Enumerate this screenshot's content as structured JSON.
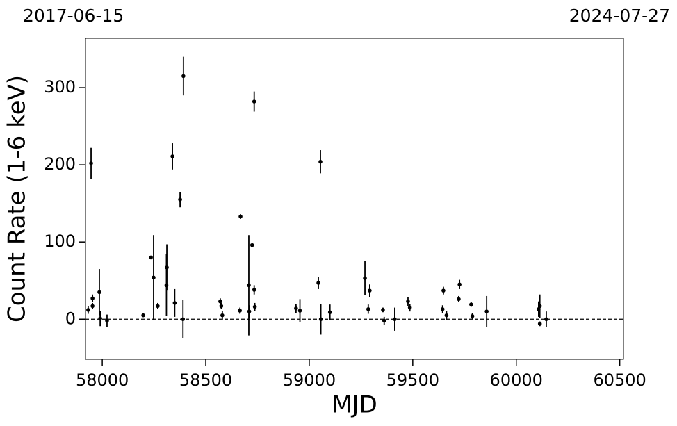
{
  "chart_data": {
    "type": "errorbar-scatter",
    "annotations": [
      "2017-06-15",
      "2024-07-27"
    ],
    "x_label": "MJD",
    "y_label": "Count Rate (1-6 keV)",
    "xlim": [
      57919,
      60518
    ],
    "ylim": [
      -52,
      364
    ],
    "xticks": [
      58000,
      58500,
      59000,
      59500,
      60000,
      60500
    ],
    "yticks": [
      0,
      100,
      200,
      300
    ],
    "hline": 0,
    "color": "#000000",
    "x": [
      57932,
      57946,
      57953,
      57953,
      57986,
      57990,
      58023,
      58198,
      58235,
      58248,
      58268,
      58312,
      58310,
      58339,
      58376,
      58392,
      58390,
      58350,
      58570,
      58575,
      58580,
      58668,
      58665,
      58710,
      58708,
      58724,
      58734,
      58734,
      58737,
      58936,
      58955,
      59044,
      59054,
      59056,
      59100,
      59269,
      59292,
      59285,
      59356,
      59362,
      59413,
      59477,
      59486,
      59648,
      59644,
      59663,
      59722,
      59726,
      59782,
      59788,
      59857,
      60108,
      60114,
      60114,
      60145
    ],
    "values": [
      12,
      202,
      27,
      17,
      35,
      1,
      -2,
      5,
      80,
      54,
      17,
      67,
      44,
      211,
      155,
      315,
      0,
      21,
      23,
      17,
      5,
      133,
      11,
      10,
      44,
      96,
      282,
      38,
      16,
      14,
      11,
      47,
      204,
      0,
      9,
      53,
      37,
      13,
      12,
      -2,
      0,
      23,
      15,
      37,
      13,
      5,
      26,
      45,
      19,
      4,
      10,
      13,
      17,
      -6,
      0
    ],
    "error": [
      5,
      20,
      5,
      4,
      30,
      10,
      8,
      2,
      2,
      55,
      4,
      30,
      40,
      17,
      10,
      25,
      25,
      18,
      4,
      4,
      6,
      3,
      4,
      8,
      65,
      2,
      13,
      6,
      5,
      6,
      15,
      8,
      15,
      20,
      10,
      22,
      8,
      6,
      3,
      5,
      15,
      6,
      5,
      5,
      5,
      6,
      4,
      6,
      3,
      4,
      20,
      10,
      15,
      3,
      10
    ]
  }
}
